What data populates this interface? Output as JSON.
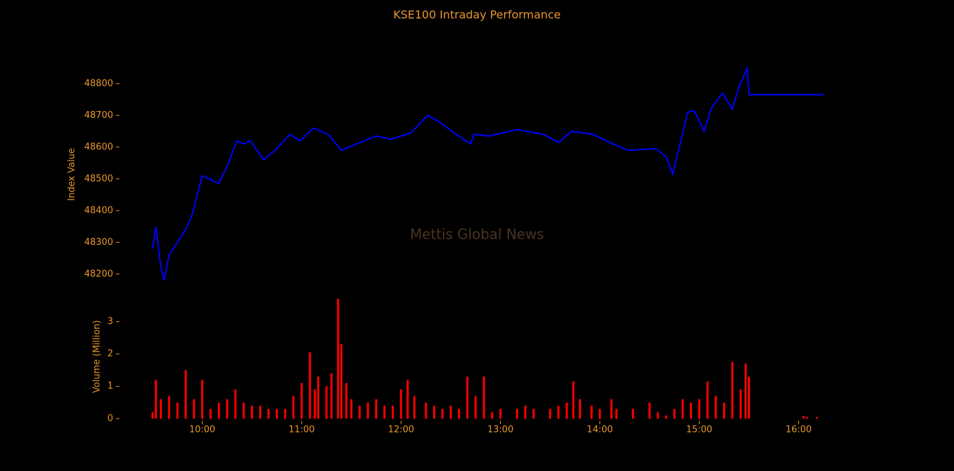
{
  "chart_data": [
    {
      "type": "line",
      "title": "KSE100 Intraday Performance",
      "annotation": "Mettis Global News",
      "y_label": "Index Value",
      "color": "#0000ff",
      "xlim": [
        "09:10",
        "16:20"
      ],
      "ylim": [
        48160,
        48870
      ],
      "yticks": [
        48200,
        48300,
        48400,
        48500,
        48600,
        48700,
        48800
      ],
      "x": [
        "09:30",
        "09:32",
        "09:35",
        "09:37",
        "09:40",
        "09:45",
        "09:50",
        "09:54",
        "10:00",
        "10:04",
        "10:10",
        "10:15",
        "10:21",
        "10:25",
        "10:29",
        "10:37",
        "10:44",
        "10:53",
        "10:59",
        "11:07",
        "11:16",
        "11:24",
        "11:33",
        "11:45",
        "11:54",
        "12:06",
        "12:16",
        "12:23",
        "12:32",
        "12:42",
        "12:44",
        "12:53",
        "13:10",
        "13:26",
        "13:35",
        "13:43",
        "13:56",
        "14:08",
        "14:17",
        "14:34",
        "14:40",
        "14:44",
        "14:48",
        "14:53",
        "14:57",
        "15:03",
        "15:07",
        "15:14",
        "15:20",
        "15:24",
        "15:29",
        "15:30",
        "16:15"
      ],
      "values": [
        48280,
        48350,
        48220,
        48180,
        48260,
        48300,
        48340,
        48390,
        48510,
        48500,
        48485,
        48540,
        48620,
        48610,
        48620,
        48560,
        48590,
        48640,
        48620,
        48660,
        48640,
        48590,
        48610,
        48635,
        48625,
        48645,
        48700,
        48680,
        48645,
        48610,
        48640,
        48635,
        48655,
        48640,
        48615,
        48650,
        48640,
        48610,
        48590,
        48595,
        48570,
        48515,
        48600,
        48710,
        48715,
        48650,
        48720,
        48770,
        48720,
        48790,
        48850,
        48765,
        48765
      ]
    },
    {
      "type": "bar",
      "y_label": "Volume (Million)",
      "color": "#ff0000",
      "xlim": [
        "09:10",
        "16:20"
      ],
      "xticks": [
        "10:00",
        "11:00",
        "12:00",
        "13:00",
        "14:00",
        "15:00",
        "16:00"
      ],
      "ylim": [
        0,
        3.75
      ],
      "yticks": [
        0,
        1,
        2,
        3
      ],
      "x": [
        "09:30",
        "09:32",
        "09:35",
        "09:40",
        "09:45",
        "09:50",
        "09:55",
        "10:00",
        "10:05",
        "10:10",
        "10:15",
        "10:20",
        "10:25",
        "10:30",
        "10:35",
        "10:40",
        "10:45",
        "10:50",
        "10:55",
        "11:00",
        "11:05",
        "11:08",
        "11:10",
        "11:15",
        "11:18",
        "11:22",
        "11:24",
        "11:27",
        "11:30",
        "11:35",
        "11:40",
        "11:45",
        "11:50",
        "11:55",
        "12:00",
        "12:04",
        "12:08",
        "12:15",
        "12:20",
        "12:25",
        "12:30",
        "12:35",
        "12:40",
        "12:45",
        "12:50",
        "12:55",
        "13:00",
        "13:10",
        "13:15",
        "13:20",
        "13:30",
        "13:35",
        "13:40",
        "13:44",
        "13:48",
        "13:55",
        "14:00",
        "14:07",
        "14:10",
        "14:20",
        "14:30",
        "14:35",
        "14:40",
        "14:45",
        "14:50",
        "14:55",
        "15:00",
        "15:05",
        "15:10",
        "15:15",
        "15:20",
        "15:25",
        "15:28",
        "15:30",
        "16:03",
        "16:05",
        "16:11"
      ],
      "values": [
        0.2,
        1.2,
        0.6,
        0.7,
        0.5,
        1.5,
        0.6,
        1.2,
        0.3,
        0.5,
        0.6,
        0.9,
        0.5,
        0.4,
        0.4,
        0.3,
        0.3,
        0.3,
        0.7,
        1.1,
        2.05,
        0.9,
        1.3,
        1.0,
        1.4,
        3.7,
        2.3,
        1.1,
        0.6,
        0.4,
        0.5,
        0.6,
        0.4,
        0.4,
        0.9,
        1.2,
        0.7,
        0.5,
        0.4,
        0.3,
        0.4,
        0.3,
        1.3,
        0.7,
        1.3,
        0.2,
        0.3,
        0.3,
        0.4,
        0.3,
        0.3,
        0.4,
        0.5,
        1.15,
        0.6,
        0.4,
        0.3,
        0.6,
        0.3,
        0.3,
        0.5,
        0.2,
        0.1,
        0.3,
        0.6,
        0.5,
        0.6,
        1.15,
        0.7,
        0.5,
        1.75,
        0.9,
        1.7,
        1.3,
        0.08,
        0.05,
        0.05
      ]
    }
  ]
}
